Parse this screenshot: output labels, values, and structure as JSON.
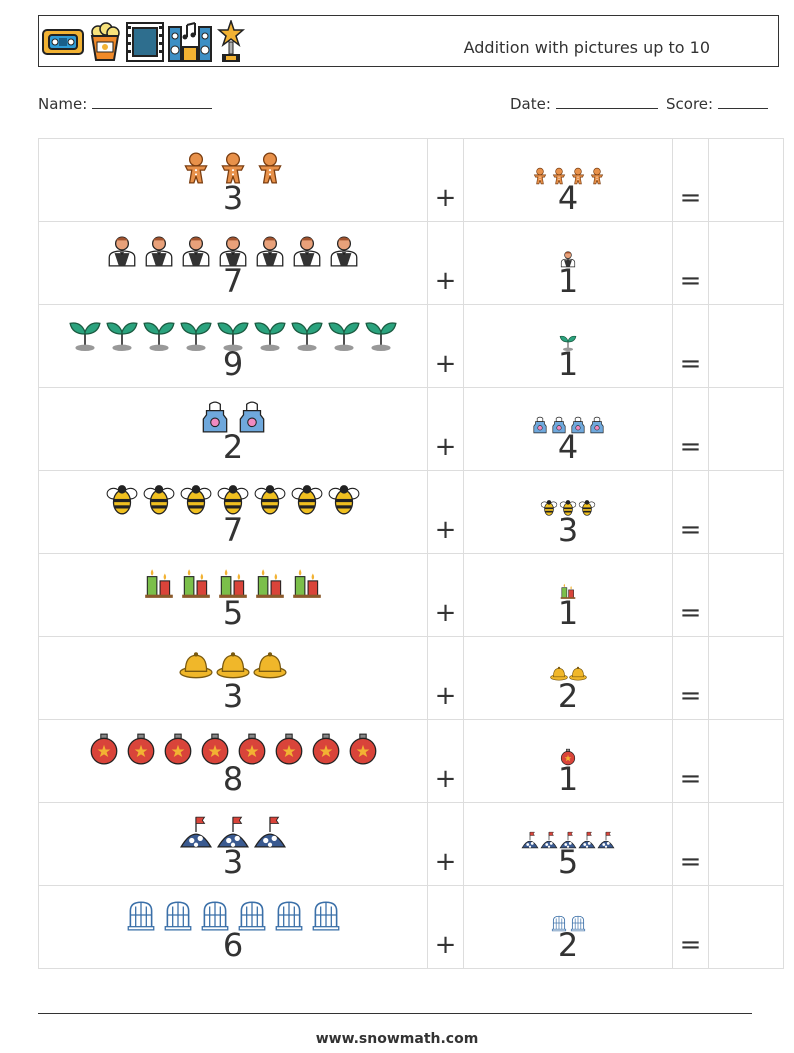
{
  "header": {
    "title": "Addition with pictures up to 10",
    "icons": [
      "vhs-tape-icon",
      "popcorn-icon",
      "film-strip-icon",
      "speakers-icon",
      "trophy-star-icon"
    ]
  },
  "info": {
    "name_label": "Name:",
    "date_label": "Date:",
    "score_label": "Score:"
  },
  "operators": {
    "plus": "+",
    "equals": "="
  },
  "problems": [
    {
      "a": 3,
      "b": 4,
      "icon": "gingerbread-icon",
      "color": "#E8914A"
    },
    {
      "a": 7,
      "b": 1,
      "icon": "waiter-icon",
      "color": "#E8A17A"
    },
    {
      "a": 9,
      "b": 1,
      "icon": "sprout-icon",
      "color": "#2BA37E"
    },
    {
      "a": 2,
      "b": 4,
      "icon": "apron-icon",
      "color": "#6FA8DC"
    },
    {
      "a": 7,
      "b": 3,
      "icon": "bee-icon",
      "color": "#F0C020"
    },
    {
      "a": 5,
      "b": 1,
      "icon": "candles-icon",
      "color": "#7BBF4A"
    },
    {
      "a": 3,
      "b": 2,
      "icon": "hat-icon",
      "color": "#F0B72A"
    },
    {
      "a": 8,
      "b": 1,
      "icon": "ornament-icon",
      "color": "#D9443A"
    },
    {
      "a": 3,
      "b": 5,
      "icon": "flag-hill-icon",
      "color": "#3A5A90"
    },
    {
      "a": 6,
      "b": 2,
      "icon": "birdcage-icon",
      "color": "#3A6FA8"
    }
  ],
  "footer": {
    "url": "www.snowmath.com"
  }
}
